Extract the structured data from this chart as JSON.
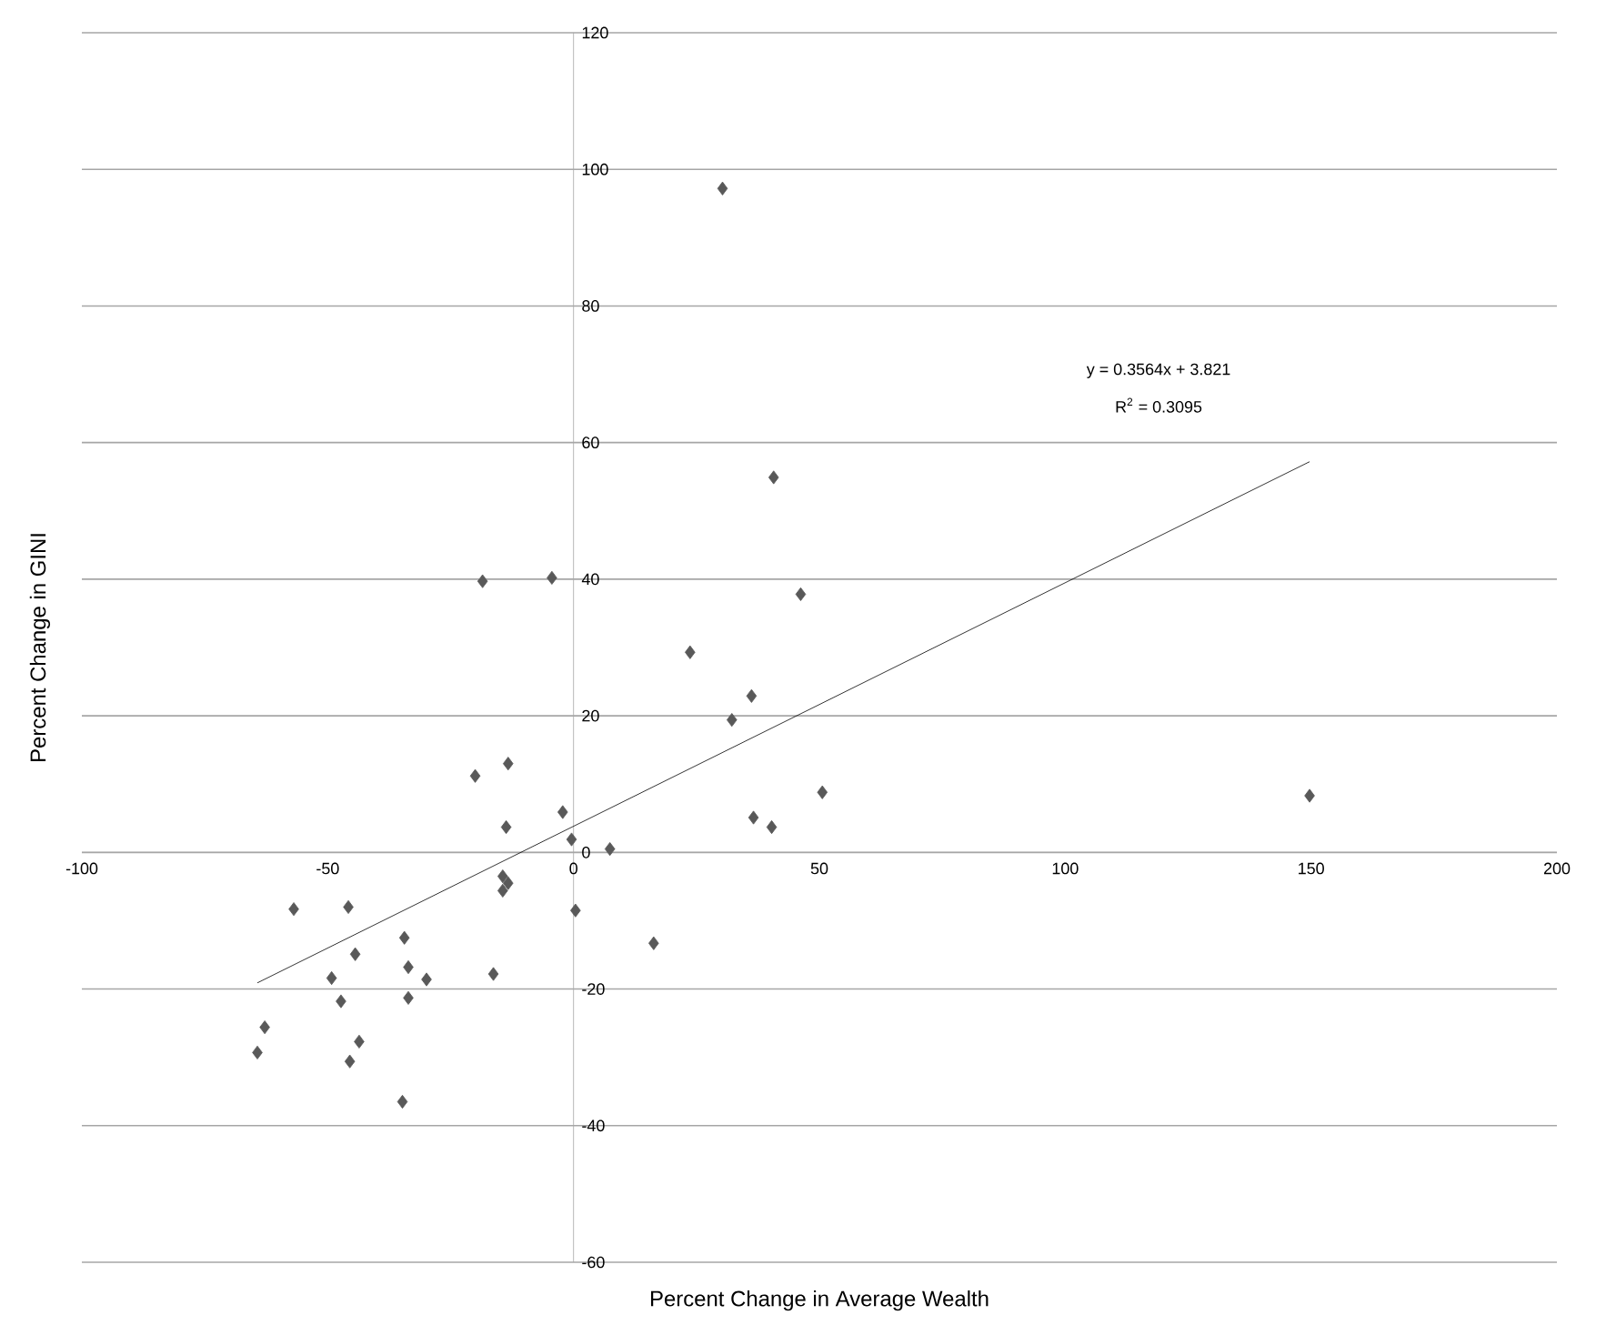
{
  "chart_data": {
    "type": "scatter",
    "xlabel": "Percent Change in Average Wealth",
    "ylabel": "Percent Change in GINI",
    "xlim": [
      -100,
      200
    ],
    "xticks": [
      -100,
      -50,
      0,
      50,
      100,
      150,
      200
    ],
    "ylim": [
      -60,
      120
    ],
    "yticks": [
      -60,
      -40,
      -20,
      0,
      20,
      40,
      60,
      80,
      100,
      120
    ],
    "grid": "y",
    "annotations": [
      "y = 0.3564x + 3.821",
      "R$^{2}$ = 0.3095"
    ],
    "series": [
      {
        "color": "#595959",
        "marker": "diamond",
        "x": [
          30.3,
          40.7,
          46.2,
          -18.5,
          -4.4,
          23.7,
          36.2,
          32.2,
          -13.3,
          -20.0,
          -2.2,
          -13.7,
          36.6,
          40.3,
          50.6,
          149.7,
          -0.4,
          7.4,
          0.4,
          16.3,
          -16.3,
          -14.4,
          -13.3,
          -14.4,
          -56.9,
          -45.8,
          -34.4,
          -44.4,
          -33.6,
          -29.9,
          -49.2,
          -47.3,
          -33.6,
          -62.8,
          -43.6,
          -64.3,
          -45.5,
          -34.8
        ],
        "values": [
          97.2,
          54.9,
          37.8,
          39.7,
          40.2,
          29.3,
          22.9,
          19.4,
          13.0,
          11.2,
          5.9,
          3.7,
          5.1,
          3.7,
          8.8,
          8.3,
          1.9,
          0.5,
          -8.5,
          -13.3,
          -17.8,
          -3.5,
          -4.5,
          -5.6,
          -8.3,
          -8.0,
          -12.5,
          -14.9,
          -16.8,
          -18.6,
          -18.4,
          -21.8,
          -21.3,
          -25.6,
          -27.7,
          -29.3,
          -30.6,
          -36.5
        ]
      },
      {
        "type": "line",
        "color": "#000000",
        "marker": "none",
        "line_style": "solid",
        "x": [
          -64.3,
          149.7
        ],
        "values": [
          -19.1,
          57.2
        ]
      }
    ]
  }
}
